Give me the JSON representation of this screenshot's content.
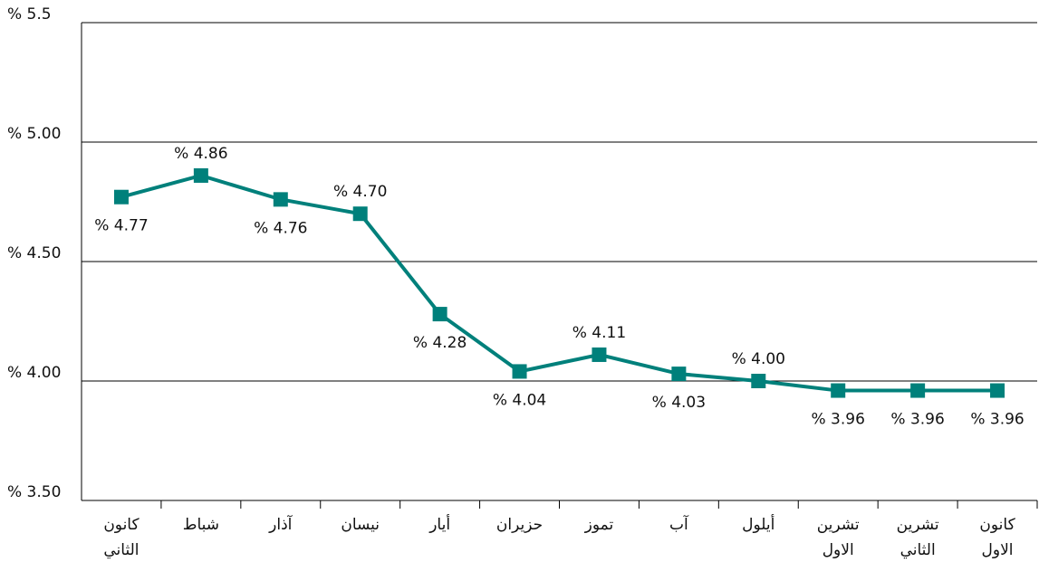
{
  "chart_data": {
    "type": "line",
    "categories": [
      "كانون الثاني",
      "شباط",
      "آذار",
      "نيسان",
      "أيار",
      "حزيران",
      "تموز",
      "آب",
      "أيلول",
      "تشرين الاول",
      "تشرين الثاني",
      "كانون الاول"
    ],
    "series": [
      {
        "name": "",
        "color": "#00807b",
        "values": [
          4.77,
          4.86,
          4.76,
          4.7,
          4.28,
          4.04,
          4.11,
          4.03,
          4.0,
          3.96,
          3.96,
          3.96
        ],
        "value_labels": [
          "% 4.77",
          "% 4.86",
          "% 4.76",
          "% 4.70",
          "% 4.28",
          "% 4.04",
          "% 4.11",
          "% 4.03",
          "% 4.00",
          "% 3.96",
          "% 3.96",
          "% 3.96"
        ]
      }
    ],
    "ylim": [
      3.5,
      5.5
    ],
    "yticks": [
      {
        "value": 3.5,
        "label": "% 3.50"
      },
      {
        "value": 4,
        "label": "% 4.00"
      },
      {
        "value": 4.5,
        "label": "% 4.50"
      },
      {
        "value": 5,
        "label": "% 5.00"
      },
      {
        "value": 5.5,
        "label": "% 5.5"
      }
    ],
    "grid": true
  }
}
